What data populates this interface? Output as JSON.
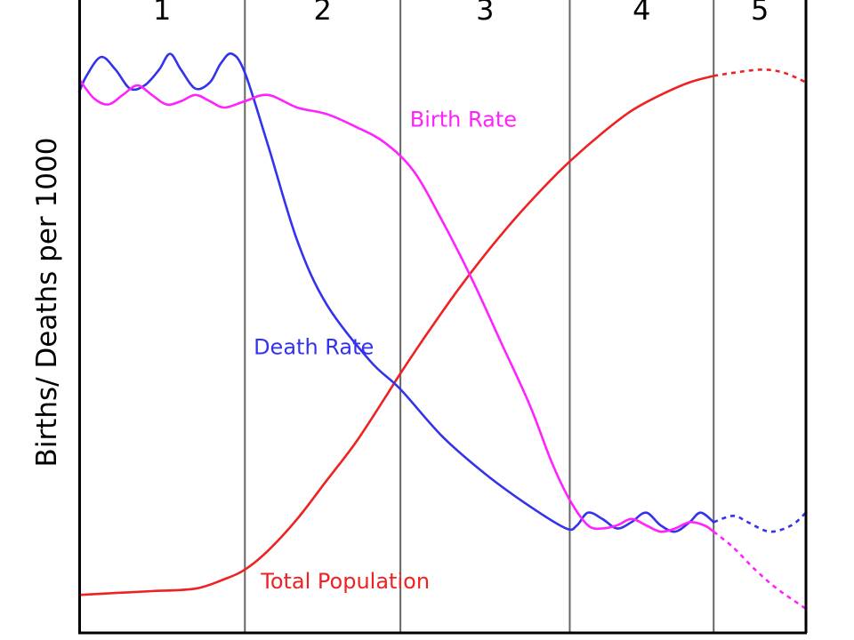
{
  "chart_data": {
    "type": "line",
    "title": "",
    "xlabel": "",
    "ylabel": "Births/ Deaths per 1000",
    "stages": [
      "1",
      "2",
      "3",
      "4",
      "5"
    ],
    "x_range": [
      0,
      100
    ],
    "y_range": [
      0,
      100
    ],
    "stage_bounds": [
      0,
      22.8,
      44.2,
      67.5,
      87.3,
      100
    ],
    "colors": {
      "birth": "#ff22ff",
      "death": "#3333ee",
      "population": "#ee2222"
    },
    "series": [
      {
        "key": "birth",
        "name": "Birth Rate",
        "label_at": [
          45.5,
          80
        ],
        "points": [
          [
            0,
            87.5
          ],
          [
            2,
            84.5
          ],
          [
            4,
            83.5
          ],
          [
            6,
            85
          ],
          [
            8,
            86.5
          ],
          [
            10,
            85
          ],
          [
            12,
            83.5
          ],
          [
            14,
            84
          ],
          [
            16,
            85
          ],
          [
            18,
            84
          ],
          [
            20,
            83
          ],
          [
            22.8,
            84
          ],
          [
            26,
            85
          ],
          [
            30,
            83
          ],
          [
            34,
            82
          ],
          [
            38,
            80
          ],
          [
            42,
            77.5
          ],
          [
            46,
            73
          ],
          [
            50,
            65
          ],
          [
            54,
            56
          ],
          [
            58,
            46
          ],
          [
            62,
            36
          ],
          [
            65,
            27
          ],
          [
            67.5,
            21
          ],
          [
            70,
            17
          ],
          [
            72,
            16.5
          ],
          [
            74,
            17
          ],
          [
            76,
            18
          ],
          [
            78,
            17
          ],
          [
            80,
            16
          ],
          [
            82,
            16.5
          ],
          [
            84,
            17.5
          ],
          [
            86,
            17
          ],
          [
            87.3,
            16
          ]
        ],
        "forecast": [
          [
            87.3,
            16
          ],
          [
            90,
            13.5
          ],
          [
            93,
            10
          ],
          [
            96,
            7
          ],
          [
            100,
            3.8
          ]
        ]
      },
      {
        "key": "death",
        "name": "Death Rate",
        "label_at": [
          24,
          44
        ],
        "points": [
          [
            0,
            85.5
          ],
          [
            1,
            88
          ],
          [
            3,
            91
          ],
          [
            5,
            89
          ],
          [
            7,
            86
          ],
          [
            9,
            86.5
          ],
          [
            11,
            89
          ],
          [
            12.5,
            91.5
          ],
          [
            14,
            89
          ],
          [
            16,
            86
          ],
          [
            18,
            87
          ],
          [
            19.5,
            90
          ],
          [
            21,
            91.5
          ],
          [
            22.8,
            88.5
          ],
          [
            26,
            77
          ],
          [
            30,
            62
          ],
          [
            34,
            52
          ],
          [
            40,
            43
          ],
          [
            44.2,
            38.5
          ],
          [
            50,
            31
          ],
          [
            56,
            25
          ],
          [
            62,
            20
          ],
          [
            67,
            16.5
          ],
          [
            68.5,
            17
          ],
          [
            70,
            19
          ],
          [
            72,
            18
          ],
          [
            74,
            16.5
          ],
          [
            76,
            17.5
          ],
          [
            78,
            19
          ],
          [
            80,
            17
          ],
          [
            82,
            16
          ],
          [
            84,
            17.5
          ],
          [
            85.5,
            19
          ],
          [
            87.3,
            17.5
          ]
        ],
        "forecast": [
          [
            87.3,
            17.5
          ],
          [
            90,
            18.5
          ],
          [
            92,
            17.5
          ],
          [
            95,
            16
          ],
          [
            98,
            17
          ],
          [
            100,
            19
          ]
        ]
      },
      {
        "key": "population",
        "name": "Total Population",
        "label_at": [
          25,
          7
        ],
        "points": [
          [
            0,
            6
          ],
          [
            5,
            6.3
          ],
          [
            10,
            6.6
          ],
          [
            16,
            7
          ],
          [
            20,
            8.5
          ],
          [
            22.8,
            10
          ],
          [
            26,
            13
          ],
          [
            30,
            18
          ],
          [
            34,
            24
          ],
          [
            38,
            30
          ],
          [
            42,
            37
          ],
          [
            44.2,
            41
          ],
          [
            48,
            47.5
          ],
          [
            52,
            54
          ],
          [
            56,
            60
          ],
          [
            60,
            65.5
          ],
          [
            64,
            70.5
          ],
          [
            67.5,
            74.5
          ],
          [
            72,
            79
          ],
          [
            76,
            82.5
          ],
          [
            80,
            85
          ],
          [
            84,
            87
          ],
          [
            87.3,
            88
          ]
        ],
        "forecast": [
          [
            87.3,
            88
          ],
          [
            90,
            88.5
          ],
          [
            94,
            89
          ],
          [
            97,
            88.5
          ],
          [
            100,
            87
          ]
        ]
      }
    ]
  }
}
